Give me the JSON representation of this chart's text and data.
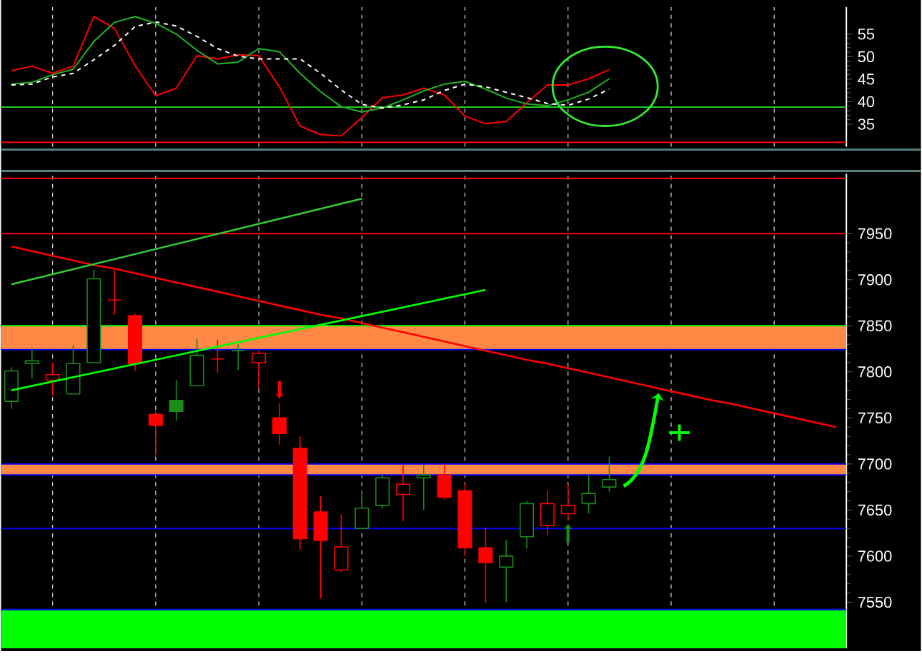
{
  "chart_data": [
    {
      "type": "line",
      "categories": [
        null,
        null,
        null,
        null,
        null,
        null,
        null,
        null,
        null,
        null,
        null,
        null,
        null,
        null,
        null,
        null,
        null,
        null,
        null,
        null,
        null,
        null,
        null,
        null,
        null,
        null,
        null,
        null,
        null,
        null,
        null,
        null,
        null,
        null,
        null,
        null,
        null,
        null,
        null,
        null,
        null
      ],
      "series": [
        {
          "color": "#ff0000",
          "values": [
            46.9,
            47.9,
            46.3,
            47.9,
            58.9,
            56.3,
            48.0,
            41.3,
            43.0,
            50.2,
            49.5,
            50.4,
            50.2,
            43.3,
            34.6,
            32.7,
            32.4,
            36.5,
            40.9,
            41.5,
            43.0,
            41.5,
            36.8,
            35.1,
            35.6,
            39.8,
            43.7,
            43.7,
            45.1,
            47.1,
            null,
            null,
            null,
            null,
            null,
            null,
            null,
            null,
            null,
            null,
            null
          ]
        },
        {
          "color": "#22b522",
          "values": [
            43.9,
            44.3,
            46.0,
            47.2,
            53.4,
            57.6,
            58.9,
            57.4,
            55.0,
            51.4,
            48.4,
            48.8,
            51.8,
            51.1,
            46.3,
            42.2,
            38.9,
            37.7,
            38.6,
            40.4,
            42.4,
            43.9,
            44.5,
            42.8,
            40.8,
            39.5,
            39.1,
            40.4,
            42.1,
            45.1,
            null,
            null,
            null,
            null,
            null,
            null,
            null,
            null,
            null,
            null,
            null
          ]
        },
        {
          "color": "#ffffff",
          "line_style": "dashed",
          "values": [
            43.7,
            43.9,
            45.5,
            46.3,
            49.3,
            52.5,
            56.7,
            57.7,
            56.8,
            54.5,
            51.8,
            50.1,
            49.5,
            49.5,
            49.5,
            46.3,
            42.6,
            39.4,
            38.6,
            39.3,
            40.4,
            42.5,
            43.9,
            43.3,
            42.1,
            40.9,
            39.6,
            39.2,
            40.6,
            42.8,
            null,
            null,
            null,
            null,
            null,
            null,
            null,
            null,
            null,
            null,
            null
          ]
        }
      ],
      "ylim": [
        30,
        61
      ],
      "yticks": [
        35,
        40,
        45,
        50,
        55
      ],
      "ref_lines": [
        {
          "axis": "y",
          "value": 38.8,
          "color": "#22cc22"
        },
        {
          "axis": "y",
          "value": 31,
          "color": "#ff0000"
        }
      ],
      "grid": "x",
      "tick_labels": "y"
    },
    {
      "type": "candlestick",
      "categories": [
        null,
        null,
        null,
        null,
        null,
        null,
        null,
        null,
        null,
        null,
        null,
        null,
        null,
        null,
        null,
        null,
        null,
        null,
        null,
        null,
        null,
        null,
        null,
        null,
        null,
        null,
        null,
        null,
        null,
        null,
        null,
        null,
        null,
        null,
        null,
        null,
        null,
        null,
        null,
        null,
        null
      ],
      "ohlc": [
        [
          7768,
          7805,
          7760,
          7801
        ],
        [
          7809,
          7826,
          7793,
          7812
        ],
        [
          7791,
          7810,
          7774,
          7797
        ],
        [
          7776,
          7829,
          7776,
          7809
        ],
        [
          7810,
          7911,
          7810,
          7901
        ],
        [
          7878,
          7911,
          7862,
          7878
        ],
        [
          7861,
          7863,
          7801,
          7809
        ],
        [
          7754,
          7757,
          7709,
          7742
        ],
        [
          7769,
          7791,
          7747,
          7757
        ],
        [
          7785,
          7836,
          7785,
          7818
        ],
        [
          7814,
          7835,
          7799,
          7814
        ],
        [
          7823,
          7830,
          7802,
          7823
        ],
        [
          7810,
          7823,
          7782,
          7820
        ],
        [
          7750,
          7766,
          7721,
          7733
        ],
        [
          7717,
          7730,
          7607,
          7619
        ],
        [
          7648,
          7665,
          7554,
          7617
        ],
        [
          7585,
          7645,
          7583,
          7610
        ],
        [
          7630,
          7670,
          7630,
          7652
        ],
        [
          7655,
          7688,
          7652,
          7685
        ],
        [
          7667,
          7699,
          7638,
          7678
        ],
        [
          7685,
          7699,
          7650,
          7688
        ],
        [
          7688,
          7700,
          7661,
          7664
        ],
        [
          7671,
          7679,
          7600,
          7609
        ],
        [
          7609,
          7631,
          7549,
          7593
        ],
        [
          7588,
          7618,
          7550,
          7600
        ],
        [
          7621,
          7660,
          7608,
          7657
        ],
        [
          7633,
          7671,
          7623,
          7657
        ],
        [
          7646,
          7678,
          7639,
          7655
        ],
        [
          7657,
          7688,
          7646,
          7668
        ],
        [
          7675,
          7708,
          7670,
          7683
        ],
        null,
        null,
        null,
        null,
        null,
        null,
        null,
        null,
        null,
        null,
        null
      ],
      "colors": [
        "#1a8c1a",
        "#1a8c1a",
        "#ff0000",
        "#1a8c1a",
        "#1a8c1a",
        "#ff0000",
        "#ff0000",
        "#ff0000",
        "#1a8c1a",
        "#1a8c1a",
        "#ff0000",
        "#1a8c1a",
        "#ff0000",
        "#ff0000",
        "#ff0000",
        "#ff0000",
        "#ff0000",
        "#1a8c1a",
        "#1a8c1a",
        "#ff0000",
        "#1a8c1a",
        "#ff0000",
        "#ff0000",
        "#ff0000",
        "#1a8c1a",
        "#1a8c1a",
        "#ff0000",
        "#ff0000",
        "#1a8c1a",
        "#1a8c1a",
        null,
        null,
        null,
        null,
        null,
        null,
        null,
        null,
        null,
        null,
        null
      ],
      "series": [
        {
          "type": "line",
          "color": "#ff0000",
          "values": [
            7936,
            7931,
            7926,
            7921,
            7916,
            7912,
            7907,
            7902,
            7897,
            7892,
            7887,
            7882,
            7877,
            7872,
            7867,
            7862,
            7858,
            7853,
            7848,
            7843,
            7838,
            7833,
            7828,
            7823,
            7818,
            7813,
            7809,
            7804,
            7799,
            7794,
            7789,
            7784,
            7779,
            7774,
            7769,
            7765,
            7760,
            7755,
            7750,
            7745,
            7740
          ]
        },
        {
          "type": "line",
          "color": "#33cc33",
          "values": [
            7895,
            null,
            null,
            null,
            null,
            null,
            null,
            null,
            null,
            null,
            null,
            null,
            null,
            null,
            null,
            null,
            null,
            7988,
            null,
            null,
            null,
            null,
            null,
            null,
            null,
            null,
            null,
            null,
            null,
            null,
            null,
            null,
            null,
            null,
            null,
            null,
            null,
            null,
            null,
            null,
            null
          ]
        },
        {
          "type": "line",
          "color": "#00ff00",
          "values": [
            7780,
            null,
            null,
            null,
            null,
            null,
            null,
            null,
            null,
            null,
            null,
            null,
            null,
            null,
            null,
            null,
            null,
            null,
            null,
            null,
            null,
            null,
            null,
            7889,
            null,
            null,
            null,
            null,
            null,
            null,
            null,
            null,
            null,
            null,
            null,
            null,
            null,
            null,
            null,
            null,
            null
          ]
        }
      ],
      "ylim": [
        7500,
        8015
      ],
      "yticks": [
        7550,
        7600,
        7650,
        7700,
        7750,
        7800,
        7850,
        7900,
        7950
      ],
      "bands": [
        {
          "axis": "y",
          "from": 7824,
          "to": 7850,
          "color": "#ff8844"
        },
        {
          "axis": "y",
          "from": 7688,
          "to": 7700,
          "color": "#ff8844"
        },
        {
          "axis": "y",
          "from": 7500,
          "to": 7542,
          "color": "#00ff00"
        }
      ],
      "ref_lines": [
        {
          "axis": "y",
          "value": 8010,
          "color": "#ff0000"
        },
        {
          "axis": "y",
          "value": 7950,
          "color": "#ff0000"
        },
        {
          "axis": "y",
          "value": 7850,
          "color": "#00ff00"
        },
        {
          "axis": "y",
          "value": 7824,
          "color": "#0000ff"
        },
        {
          "axis": "y",
          "value": 7700,
          "color": "#0000ff"
        },
        {
          "axis": "y",
          "value": 7688,
          "color": "#0000ff"
        },
        {
          "axis": "y",
          "value": 7630,
          "color": "#0000ff"
        },
        {
          "axis": "y",
          "value": 7542,
          "color": "#0000ff"
        }
      ],
      "grid": "x",
      "tick_labels": "y"
    }
  ]
}
